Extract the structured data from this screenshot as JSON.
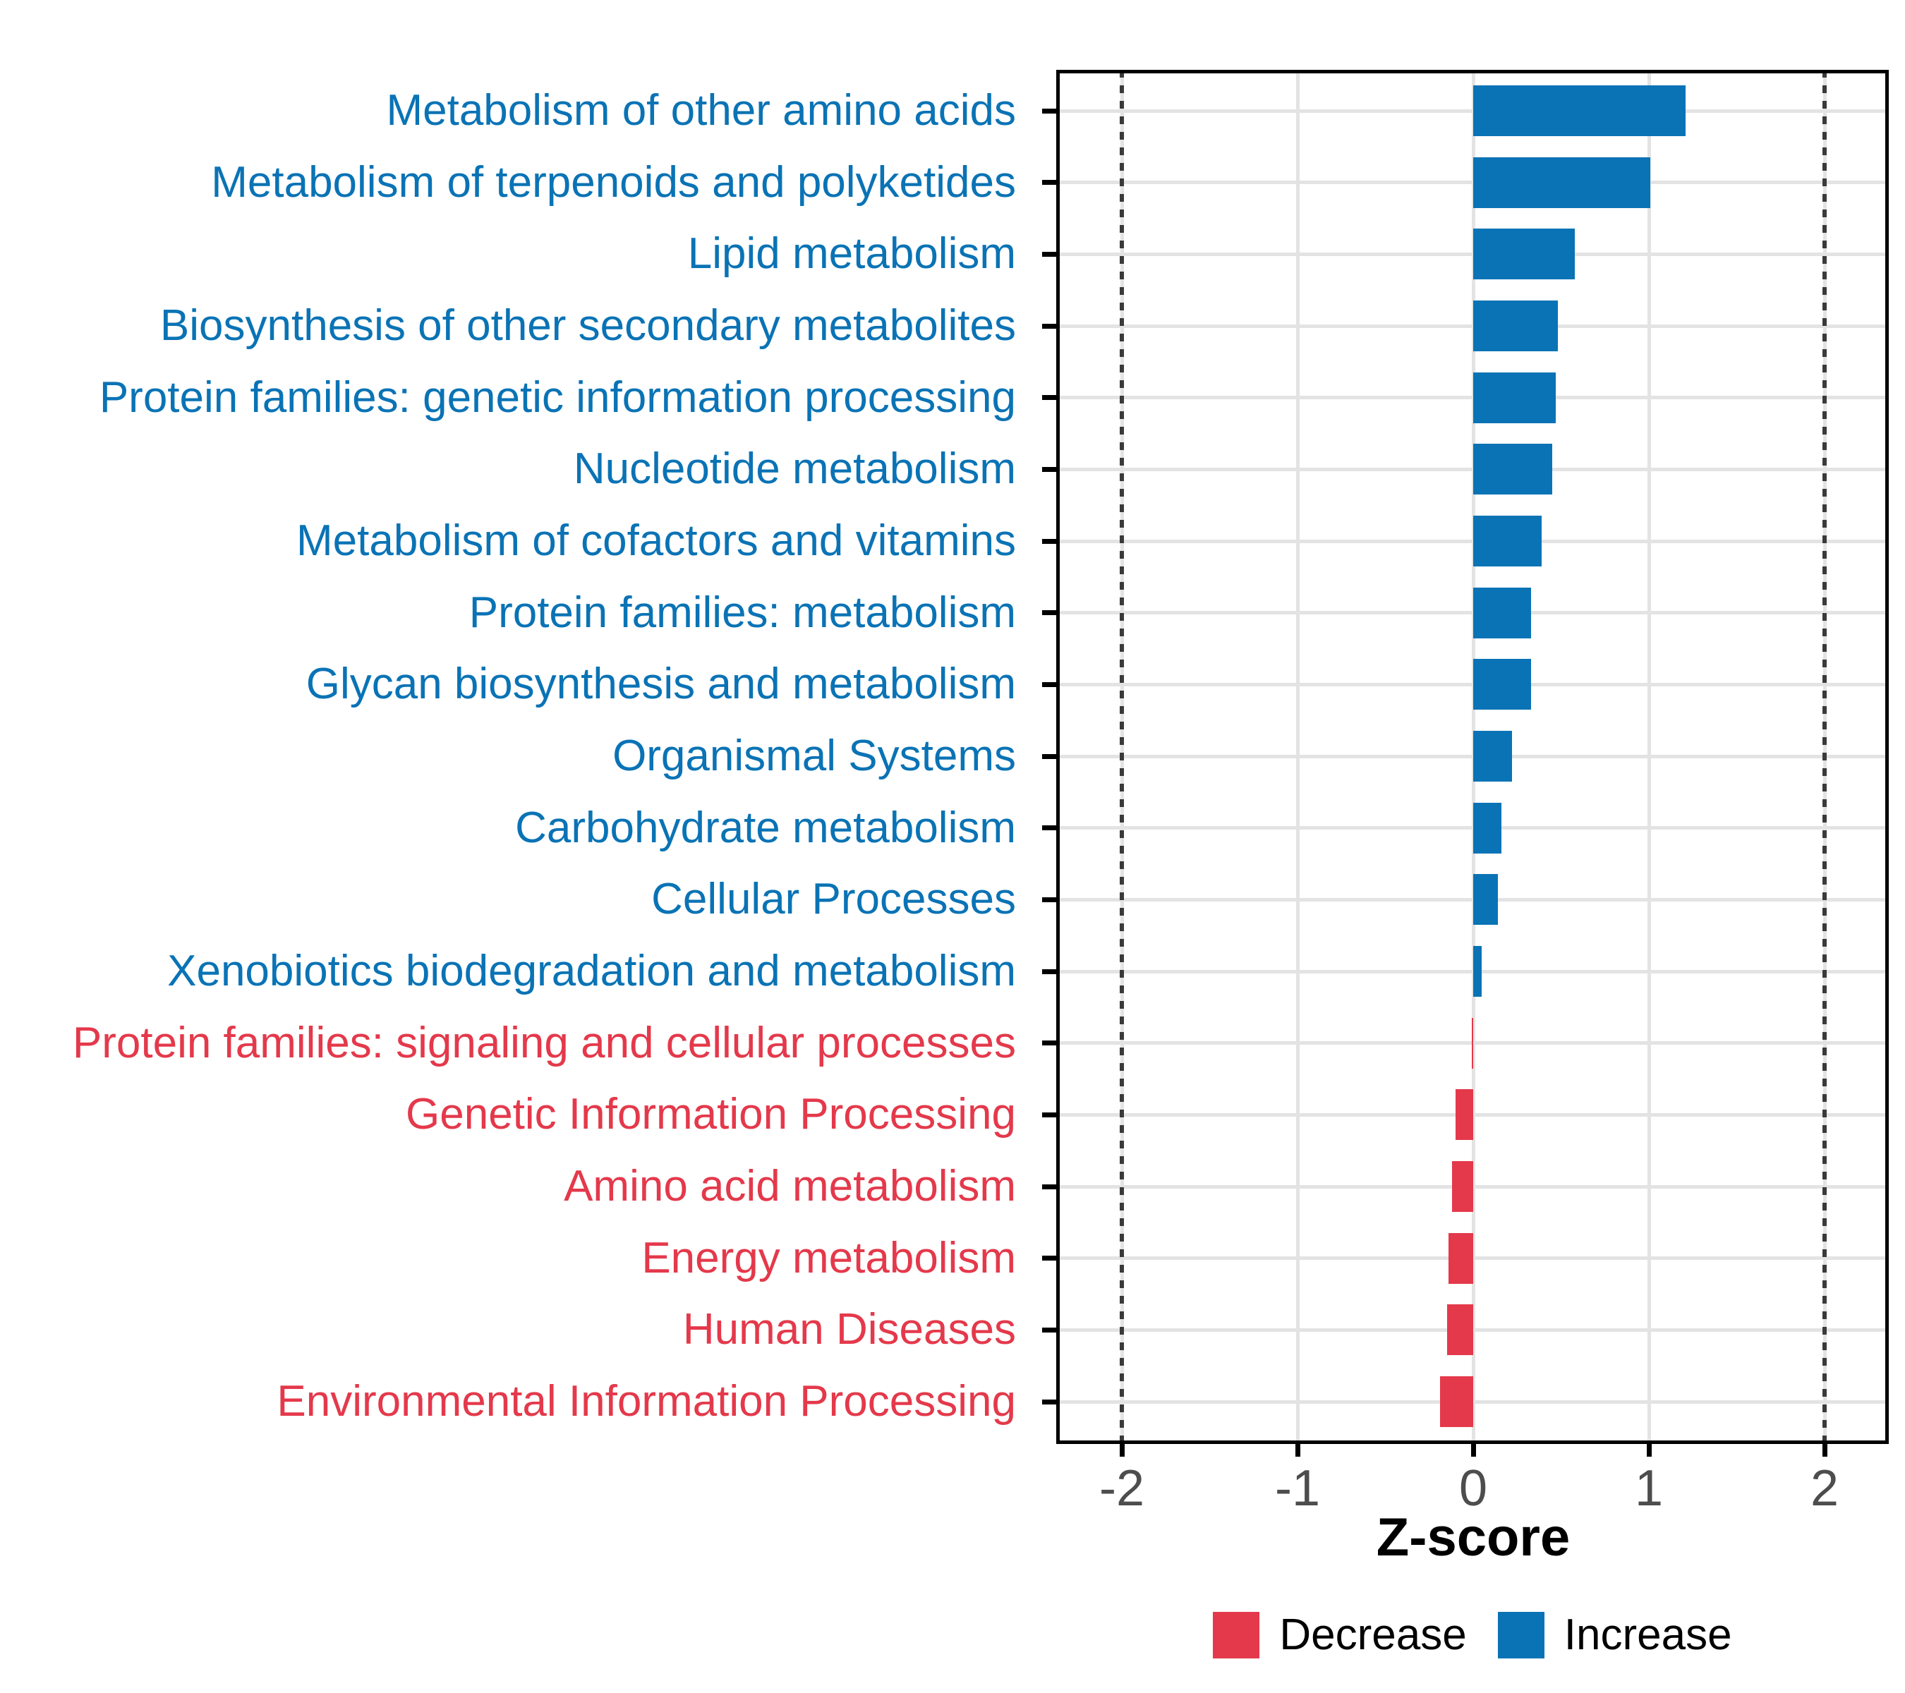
{
  "chart_data": {
    "type": "bar",
    "orientation": "horizontal",
    "title": "",
    "xlabel": "Z-score",
    "ylabel": "",
    "x_ticks": [
      -2,
      -1,
      0,
      1,
      2
    ],
    "x_tick_labels": [
      "-2",
      "-1",
      "0",
      "1",
      "2"
    ],
    "xlim": [
      -2.37,
      2.37
    ],
    "reference_lines_dotted": [
      -2,
      2
    ],
    "grid": true,
    "legend_position": "bottom",
    "legend": [
      {
        "label": "Decrease",
        "color": "#E4394B"
      },
      {
        "label": "Increase",
        "color": "#0A73B5"
      }
    ],
    "bars": [
      {
        "label": "Metabolism of other amino acids",
        "value": 1.21,
        "group": "Increase"
      },
      {
        "label": "Metabolism of terpenoids and polyketides",
        "value": 1.01,
        "group": "Increase"
      },
      {
        "label": "Lipid metabolism",
        "value": 0.58,
        "group": "Increase"
      },
      {
        "label": "Biosynthesis of other secondary metabolites",
        "value": 0.48,
        "group": "Increase"
      },
      {
        "label": "Protein families: genetic information processing",
        "value": 0.47,
        "group": "Increase"
      },
      {
        "label": "Nucleotide metabolism",
        "value": 0.45,
        "group": "Increase"
      },
      {
        "label": "Metabolism of cofactors and vitamins",
        "value": 0.39,
        "group": "Increase"
      },
      {
        "label": "Protein families: metabolism",
        "value": 0.33,
        "group": "Increase"
      },
      {
        "label": "Glycan biosynthesis and metabolism",
        "value": 0.33,
        "group": "Increase"
      },
      {
        "label": "Organismal Systems",
        "value": 0.22,
        "group": "Increase"
      },
      {
        "label": "Carbohydrate metabolism",
        "value": 0.16,
        "group": "Increase"
      },
      {
        "label": "Cellular Processes",
        "value": 0.14,
        "group": "Increase"
      },
      {
        "label": "Xenobiotics biodegradation and metabolism",
        "value": 0.05,
        "group": "Increase"
      },
      {
        "label": "Protein families: signaling and cellular processes",
        "value": -0.01,
        "group": "Decrease"
      },
      {
        "label": "Genetic Information Processing",
        "value": -0.1,
        "group": "Decrease"
      },
      {
        "label": "Amino acid metabolism",
        "value": -0.12,
        "group": "Decrease"
      },
      {
        "label": "Energy metabolism",
        "value": -0.14,
        "group": "Decrease"
      },
      {
        "label": "Human Diseases",
        "value": -0.15,
        "group": "Decrease"
      },
      {
        "label": "Environmental Information Processing",
        "value": -0.19,
        "group": "Decrease"
      }
    ],
    "colors": {
      "increase_bar": "#0A73B5",
      "decrease_bar": "#E4394B",
      "increase_label_text": "#0A73B5",
      "decrease_label_text": "#E4394B",
      "gridline": "#E3E3E3",
      "reference_line": "#3A3A3A",
      "axis_tick_label": "#4D4D4D",
      "panel_border": "#000000",
      "background": "#FFFFFF"
    }
  }
}
